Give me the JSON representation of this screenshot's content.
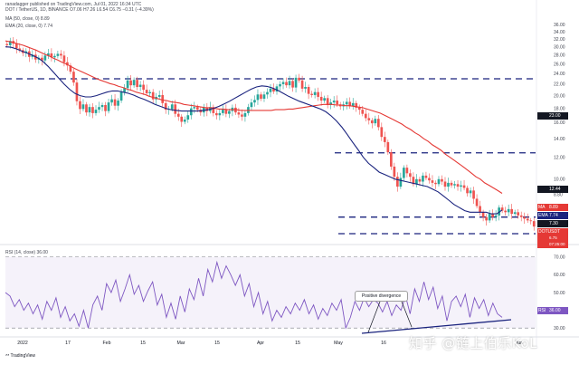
{
  "header": {
    "publisher": "ranadagger published on TradingView.com, Jul 01, 2022 16:34 UTC",
    "symbol_line": "DOT / TetherUS, 1D, BINANCE  O7.06  H7.26  L6.54  C6.75  −0.31 (−4.39%)",
    "ma_line": "MA (50, close, 0)  8.89",
    "ema_line": "EMA (20, close, 0)  7.74",
    "rsi_line": "RSI (14, close)  36.00"
  },
  "badges": {
    "ma": {
      "label": "MA",
      "value": "8.89",
      "color": "#e53935"
    },
    "ema": {
      "label": "EMA",
      "value": "7.74",
      "color": "#1a237e"
    },
    "ema_level": {
      "label": "",
      "value": "7.30",
      "color": "#131722"
    },
    "price": {
      "label": "DOTUSDT",
      "value": "6.75",
      "color": "#e53935"
    },
    "countdown": {
      "label": "",
      "value": "07:25:00",
      "color": "#e53935"
    },
    "low": {
      "label": "",
      "value": "6.36",
      "color": "#131722"
    },
    "res_2344": {
      "label": "",
      "value": "12.44",
      "color": "#131722"
    },
    "res_23": {
      "label": "",
      "value": "23.00",
      "color": "#131722"
    },
    "rsi": {
      "label": "RSI",
      "value": "36.00",
      "color": "#7e57c2"
    }
  },
  "annotation": "Positive divergence",
  "footer": "TradingView",
  "watermark": "知乎 @链上伯乐KoL",
  "colors": {
    "up": "#26a69a",
    "down": "#ef5350",
    "ma": "#e53935",
    "ema": "#1a237e",
    "rsi": "#7e57c2",
    "level": "#1a237e"
  },
  "chart_data": [
    {
      "type": "candlestick",
      "title": "DOT / TetherUS, 1D, BINANCE",
      "x_labels": [
        "2022",
        "17",
        "Feb",
        "15",
        "Mar",
        "15",
        "Apr",
        "15",
        "May",
        "16",
        "Jun"
      ],
      "y_ticks": [
        6.36,
        7.3,
        8.8,
        10.0,
        12.0,
        14.0,
        16.0,
        18.0,
        20.0,
        22.0,
        24.0,
        26.0,
        28.0,
        30.0,
        32.0,
        34.0,
        36.0
      ],
      "y_scale": "log",
      "ylim": [
        5.9,
        37.5
      ],
      "close_series": [
        30.4,
        31.5,
        30.8,
        29.6,
        29.2,
        28.5,
        28.9,
        27.6,
        28.1,
        27.0,
        27.4,
        26.8,
        27.9,
        28.4,
        27.5,
        27.8,
        28.3,
        27.9,
        26.4,
        25.7,
        24.4,
        22.3,
        19.1,
        17.9,
        18.6,
        17.4,
        18.2,
        17.3,
        17.8,
        18.2,
        18.5,
        17.6,
        18.9,
        19.4,
        18.4,
        19.2,
        20.6,
        21.3,
        22.7,
        21.8,
        22.8,
        21.5,
        21.9,
        21.0,
        20.4,
        20.6,
        19.4,
        19.8,
        20.1,
        18.8,
        17.8,
        17.9,
        18.6,
        17.2,
        16.8,
        16.1,
        16.4,
        17.0,
        18.0,
        18.2,
        17.8,
        17.4,
        18.1,
        17.6,
        18.2,
        17.3,
        17.0,
        17.3,
        17.8,
        17.2,
        17.6,
        18.1,
        17.4,
        17.1,
        16.8,
        17.3,
        18.2,
        18.9,
        19.3,
        20.2,
        19.5,
        20.2,
        20.6,
        21.2,
        20.7,
        21.6,
        22.0,
        22.4,
        21.8,
        22.6,
        21.4,
        23.2,
        22.7,
        21.2,
        21.5,
        20.3,
        20.1,
        20.6,
        19.8,
        19.2,
        19.6,
        18.5,
        18.9,
        19.2,
        18.6,
        18.3,
        18.6,
        19.0,
        18.3,
        18.8,
        18.1,
        17.8,
        17.2,
        16.6,
        16.3,
        15.9,
        16.5,
        15.4,
        14.2,
        13.6,
        12.5,
        11.1,
        10.2,
        9.4,
        10.1,
        11.0,
        10.5,
        10.2,
        9.6,
        10.0,
        9.8,
        10.3,
        10.1,
        9.9,
        9.7,
        9.6,
        10.0,
        9.8,
        9.4,
        9.7,
        9.5,
        9.6,
        9.4,
        9.5,
        9.3,
        8.9,
        9.1,
        8.5,
        8.0,
        7.6,
        7.3,
        7.1,
        7.5,
        7.3,
        7.4,
        7.9,
        7.7,
        7.6,
        7.8,
        7.5,
        7.6,
        7.4,
        7.3,
        7.2,
        7.1,
        7.06,
        6.75
      ],
      "series": [
        {
          "name": "MA (50, close, 0)",
          "values": [
            31.5,
            31.3,
            31.0,
            30.7,
            30.4,
            30.0,
            29.6,
            29.2,
            28.7,
            28.2,
            27.8,
            27.3,
            26.9,
            26.4,
            26.0,
            25.5,
            25.0,
            24.6,
            24.2,
            23.8,
            23.4,
            23.0,
            22.7,
            22.4,
            22.1,
            21.9,
            21.6,
            21.4,
            21.1,
            20.9,
            20.6,
            20.4,
            20.2,
            19.9,
            19.7,
            19.5,
            19.3,
            19.2,
            19.0,
            18.9,
            18.8,
            18.6,
            18.5,
            18.4,
            18.3,
            18.2,
            18.1,
            18.1,
            18.0,
            17.9,
            17.9,
            17.8,
            17.8,
            17.8,
            17.7,
            17.7,
            17.7,
            17.7,
            17.7,
            17.7,
            17.7,
            17.7,
            17.8,
            17.8,
            17.8,
            17.9,
            17.9,
            18.0,
            18.1,
            18.2,
            18.3,
            18.4,
            18.5,
            18.6,
            18.6,
            18.6,
            18.5,
            18.5,
            18.4,
            18.4,
            18.3,
            18.2,
            18.1,
            17.9,
            17.7,
            17.5,
            17.3,
            17.0,
            16.7,
            16.4,
            16.1,
            15.8,
            15.4,
            15.1,
            14.7,
            14.4,
            14.0,
            13.7,
            13.3,
            13.0,
            12.7,
            12.3,
            12.0,
            11.7,
            11.4,
            11.1,
            10.8,
            10.5,
            10.2,
            10.0,
            9.7,
            9.5,
            9.3,
            9.1,
            8.89
          ]
        },
        {
          "name": "EMA (20, close, 0)",
          "values": [
            30.0,
            29.9,
            29.5,
            29.0,
            28.5,
            28.0,
            27.4,
            26.6,
            25.5,
            24.3,
            23.1,
            22.0,
            21.1,
            20.4,
            20.0,
            19.8,
            19.8,
            20.0,
            20.3,
            20.6,
            20.8,
            20.8,
            20.6,
            20.4,
            20.1,
            19.7,
            19.4,
            19.0,
            18.6,
            18.3,
            18.0,
            17.8,
            17.7,
            17.6,
            17.6,
            17.6,
            17.6,
            17.7,
            17.8,
            18.0,
            18.3,
            18.7,
            19.1,
            19.6,
            20.1,
            20.6,
            21.1,
            21.5,
            21.7,
            21.6,
            21.3,
            20.9,
            20.4,
            19.9,
            19.5,
            19.1,
            18.8,
            18.5,
            18.2,
            17.9,
            17.5,
            16.9,
            16.2,
            15.4,
            14.5,
            13.6,
            12.8,
            12.0,
            11.4,
            11.0,
            10.6,
            10.4,
            10.2,
            10.0,
            9.9,
            9.8,
            9.7,
            9.6,
            9.5,
            9.4,
            9.2,
            9.0,
            8.7,
            8.4,
            8.1,
            7.9,
            7.7,
            7.6,
            7.6,
            7.6,
            7.6,
            7.5,
            7.5,
            7.74
          ]
        }
      ],
      "levels": [
        {
          "value": 23.0,
          "label": "23.00"
        },
        {
          "value": 12.44,
          "label": "12.44"
        },
        {
          "value": 7.3,
          "label": "7.30"
        },
        {
          "value": 6.36,
          "label": "6.36"
        }
      ]
    },
    {
      "type": "line",
      "title": "RSI (14, close)",
      "y_ticks": [
        30.0,
        36.0,
        40.0,
        50.0,
        60.0,
        70.0
      ],
      "ylim": [
        26,
        76
      ],
      "overbought": 70,
      "oversold": 30,
      "series": [
        {
          "name": "RSI (14, close)",
          "values": [
            50,
            48,
            42,
            46,
            40,
            44,
            38,
            43,
            35,
            45,
            40,
            47,
            36,
            42,
            34,
            38,
            31,
            40,
            30,
            43,
            48,
            40,
            55,
            50,
            57,
            45,
            52,
            60,
            49,
            54,
            45,
            51,
            56,
            43,
            49,
            36,
            44,
            35,
            48,
            39,
            52,
            46,
            58,
            48,
            63,
            56,
            67,
            58,
            65,
            60,
            54,
            60,
            48,
            55,
            42,
            50,
            38,
            45,
            34,
            40,
            36,
            42,
            38,
            44,
            40,
            46,
            38,
            43,
            35,
            41,
            37,
            44,
            40,
            46,
            30,
            36,
            45,
            40,
            47,
            42,
            46,
            44,
            39,
            45,
            37,
            43,
            40,
            48,
            38,
            52,
            45,
            56,
            46,
            53,
            41,
            48,
            34,
            45,
            48,
            42,
            49,
            36,
            47,
            41,
            46,
            37,
            44,
            38,
            36
          ]
        }
      ],
      "divergence_lines": [
        {
          "from": [
            0.805,
            0.68
          ],
          "to": [
            0.905,
            0.755
          ]
        }
      ]
    }
  ]
}
